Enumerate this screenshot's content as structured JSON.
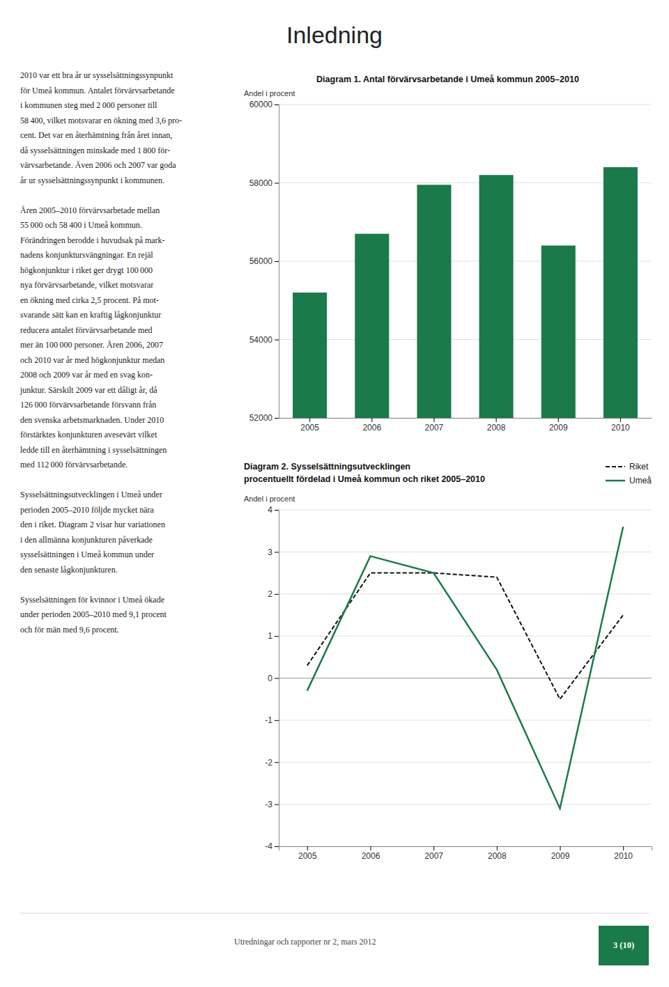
{
  "page_title": "Inledning",
  "body_text": [
    [
      "2010 var ett bra år ur sysselsättningssynpunkt",
      "för Umeå kommun. Antalet förvärvsarbetande",
      "i kommunen steg med 2 000 personer till",
      "58 400, vilket motsvarar en ökning med 3,6 pro-",
      "cent. Det var en återhämtning från året innan,",
      "då sysselsättningen minskade med 1 800 för-",
      "värvsarbetande. Även 2006 och 2007 var goda",
      "år ur sysselsättningssynpunkt i kommunen."
    ],
    [
      "Åren 2005–2010 förvärvsarbetade mellan",
      "55 000 och 58 400 i Umeå kommun.",
      "Förändringen berodde i huvudsak på mark-",
      "nadens konjunktursvängningar. En rejäl",
      "högkonjunktur i riket ger drygt 100 000",
      "nya förvärvsarbetande, vilket motsvarar",
      "en ökning med cirka 2,5 procent. På mot-",
      "svarande sätt kan en kraftig lågkonjunktur",
      "reducera antalet förvärvsarbetande med",
      "mer än 100 000 personer. Åren 2006, 2007",
      "och 2010 var år med högkonjunktur medan",
      "2008 och 2009 var år med en svag kon-",
      "junktur. Särskilt 2009 var ett dåligt år, då",
      "126 000 förvärvsarbetande försvann från",
      "den svenska arbetsmarknaden. Under 2010",
      "förstärktes konjunkturen avesevärt vilket",
      "ledde till en återhämtning i sysselsättningen",
      "med 112 000 förvärvsarbetande."
    ],
    [
      "Sysselsättningsutvecklingen i Umeå under",
      "perioden 2005–2010 följde mycket nära",
      "den i riket. Diagram 2 visar hur variationen",
      "i den allmänna konjunkturen påverkade",
      "sysselsättningen i Umeå kommun under",
      "den senaste lågkonjunkturen."
    ],
    [
      "Sysselsättningen för kvinnor i Umeå ökade",
      "under perioden 2005–2010 med 9,1 procent",
      "och för män med 9,6 procent."
    ]
  ],
  "chart_data": [
    {
      "type": "bar",
      "title": "Diagram 1. Antal förvärvsarbetande i Umeå kommun 2005–2010",
      "ylabel": "Andel i procent",
      "categories": [
        "2005",
        "2006",
        "2007",
        "2008",
        "2009",
        "2010"
      ],
      "values": [
        55200,
        56700,
        57950,
        58200,
        56400,
        58400
      ],
      "color": "#1a7a4a",
      "ylim": [
        52000,
        60000
      ],
      "yticks": [
        52000,
        54000,
        56000,
        58000,
        60000
      ],
      "grid": true
    },
    {
      "type": "line",
      "title": "Diagram 2. Sysselsättningsutvecklingen",
      "subtitle": "procentuellt fördelad i Umeå kommun och riket 2005–2010",
      "ylabel": "Andel i procent",
      "x": [
        2005,
        2006,
        2007,
        2008,
        2009,
        2010
      ],
      "series": [
        {
          "name": "Riket",
          "color": "#111111",
          "line_style": "dashed",
          "values": [
            0.3,
            2.5,
            2.5,
            2.4,
            -0.5,
            1.5
          ]
        },
        {
          "name": "Umeå",
          "color": "#1a7a4a",
          "line_style": "solid",
          "values": [
            -0.3,
            2.9,
            2.5,
            0.2,
            -3.1,
            3.6
          ]
        }
      ],
      "xlim": [
        2004.55,
        2010.45
      ],
      "xticks": [
        2005,
        2006,
        2007,
        2008,
        2009,
        2010
      ],
      "ylim": [
        -4,
        4
      ],
      "yticks": [
        -4,
        -3,
        -2,
        -1,
        0,
        1,
        2,
        3,
        4
      ],
      "grid": true,
      "legend": "upper right"
    }
  ],
  "footer_text": "Utredningar och rapporter nr 2, mars 2012",
  "footer_page": "3 (10)"
}
